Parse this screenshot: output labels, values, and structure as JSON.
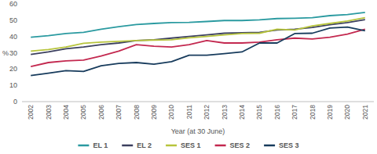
{
  "chart_data": {
    "type": "line",
    "x_label": "Year (at 30 June)",
    "y_label": "%",
    "categories": [
      "2002",
      "2003",
      "2004",
      "2005",
      "2006",
      "2007",
      "2008",
      "2009",
      "2010",
      "2011",
      "2012",
      "2013",
      "2014",
      "2015",
      "2016",
      "2017",
      "2018",
      "2019",
      "2020",
      "2021"
    ],
    "series": [
      {
        "name": "EL 1",
        "color": "#2a9aa0",
        "values": [
          39.5,
          40.5,
          41.8,
          42.5,
          44.5,
          46,
          47.3,
          48,
          48.5,
          48.7,
          49.2,
          49.8,
          49.8,
          50.2,
          51,
          51.2,
          51.5,
          52.8,
          53.5,
          54.8
        ]
      },
      {
        "name": "EL 2",
        "color": "#3b3f5e",
        "values": [
          29,
          30.5,
          32.5,
          33.5,
          35,
          36,
          37.5,
          38,
          39,
          40,
          41,
          42,
          42.3,
          42.5,
          44,
          44.5,
          45.5,
          47.2,
          48.5,
          50.3
        ]
      },
      {
        "name": "SES 1",
        "color": "#b7c43c",
        "values": [
          31,
          32,
          33.5,
          35.8,
          36.5,
          37,
          37.5,
          37.8,
          38,
          39.2,
          40,
          41,
          41.8,
          42,
          44.5,
          44,
          46.5,
          48,
          49.5,
          51.5
        ]
      },
      {
        "name": "SES 2",
        "color": "#c3284f",
        "values": [
          21.5,
          24,
          25,
          25.5,
          28,
          31,
          35,
          34,
          33.5,
          35,
          37.5,
          36,
          36,
          36.5,
          38,
          39,
          38.5,
          39.5,
          41.5,
          44.5
        ]
      },
      {
        "name": "SES 3",
        "color": "#173b5c",
        "values": [
          16,
          17.5,
          19,
          18.5,
          22,
          23.5,
          24,
          23,
          24.5,
          28.5,
          28.5,
          29.5,
          30.5,
          36,
          36,
          41.8,
          42,
          45.2,
          45.8,
          43.5
        ]
      }
    ],
    "ylim": [
      0,
      60
    ],
    "yticks": [
      0,
      10,
      20,
      30,
      40,
      50,
      60
    ],
    "grid": false,
    "legend": "bottom"
  }
}
